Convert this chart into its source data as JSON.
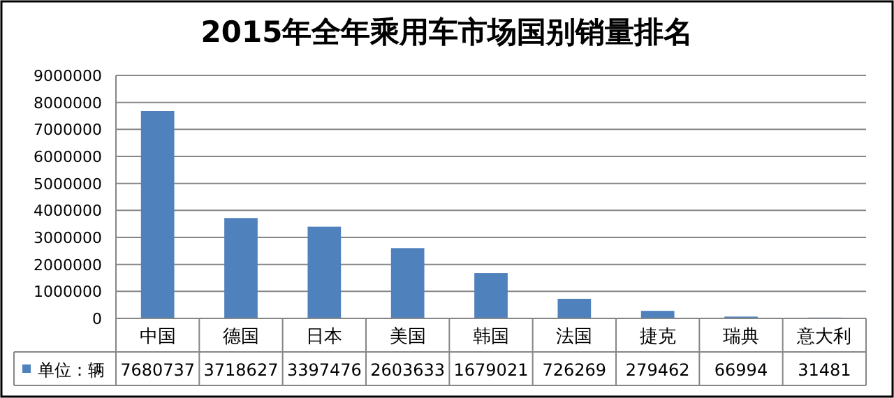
{
  "chart_data": {
    "type": "bar",
    "title": "2015年全年乘用车市场国别销量排名",
    "categories": [
      "中国",
      "德国",
      "日本",
      "美国",
      "韩国",
      "法国",
      "捷克",
      "瑞典",
      "意大利"
    ],
    "series": [
      {
        "name": "单位：辆",
        "color": "#4f81bd",
        "values": [
          7680737,
          3718627,
          3397476,
          2603633,
          1679021,
          726269,
          279462,
          66994,
          31481
        ]
      }
    ],
    "ylim": [
      0,
      9000000
    ],
    "yticks": [
      0,
      1000000,
      2000000,
      3000000,
      4000000,
      5000000,
      6000000,
      7000000,
      8000000,
      9000000
    ],
    "grid": "y",
    "legend": "bottom",
    "data_labels": true
  }
}
